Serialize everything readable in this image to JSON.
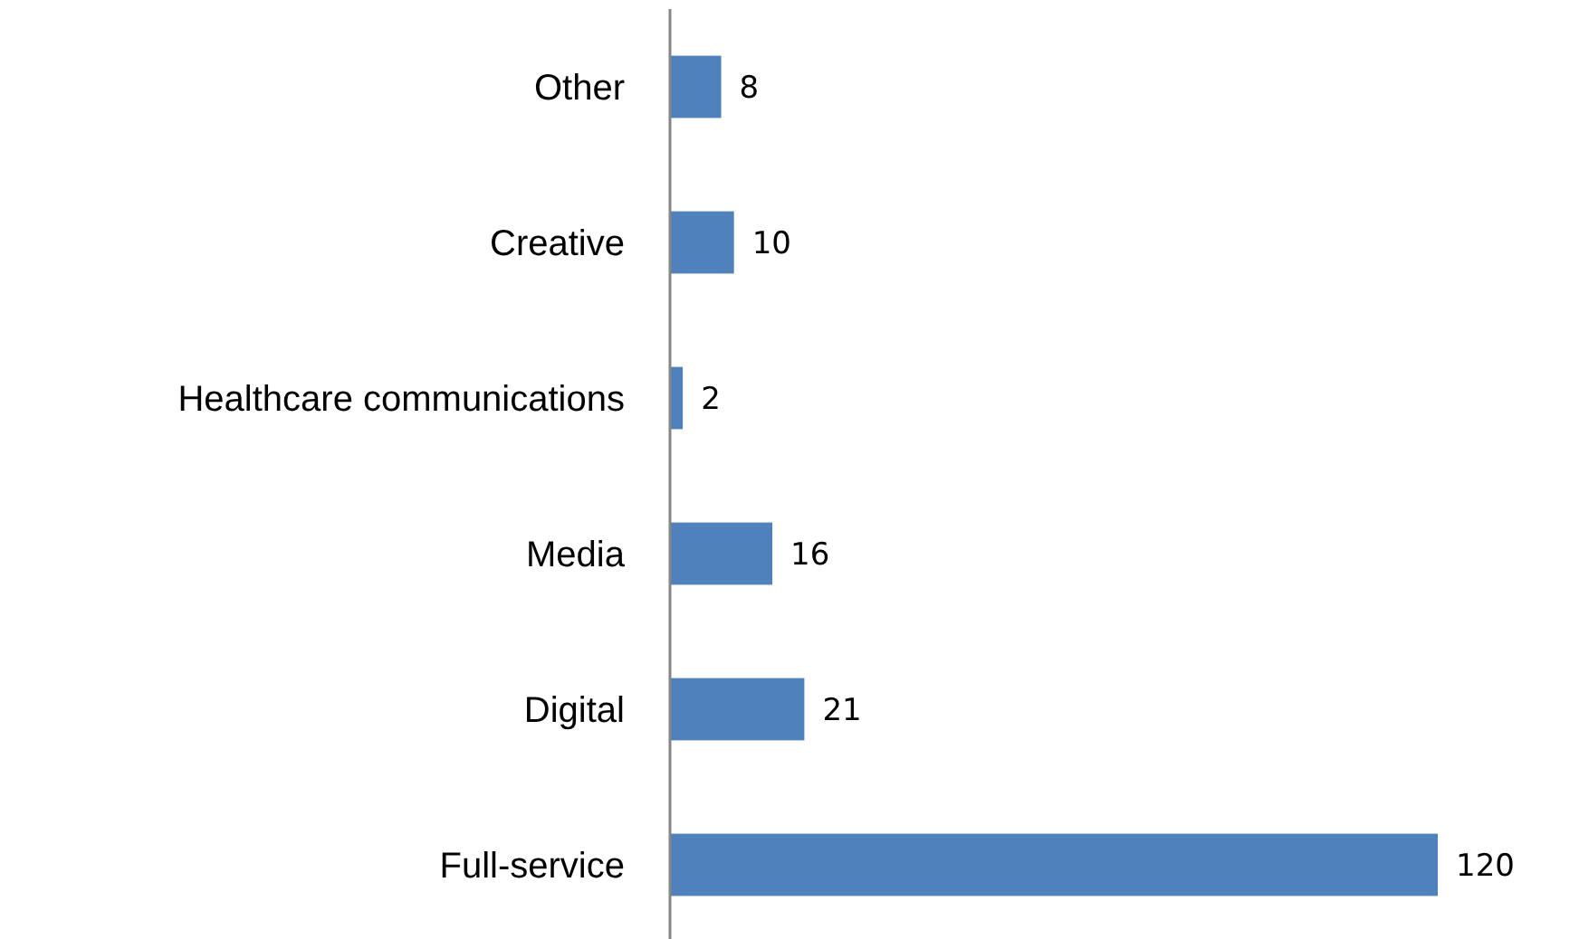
{
  "chart_data": {
    "type": "bar",
    "orientation": "horizontal",
    "categories": [
      "Other",
      "Creative",
      "Healthcare communications",
      "Media",
      "Digital",
      "Full-service"
    ],
    "values": [
      8,
      10,
      2,
      16,
      21,
      120
    ],
    "color": "#4f81bd",
    "data_labels": true
  }
}
